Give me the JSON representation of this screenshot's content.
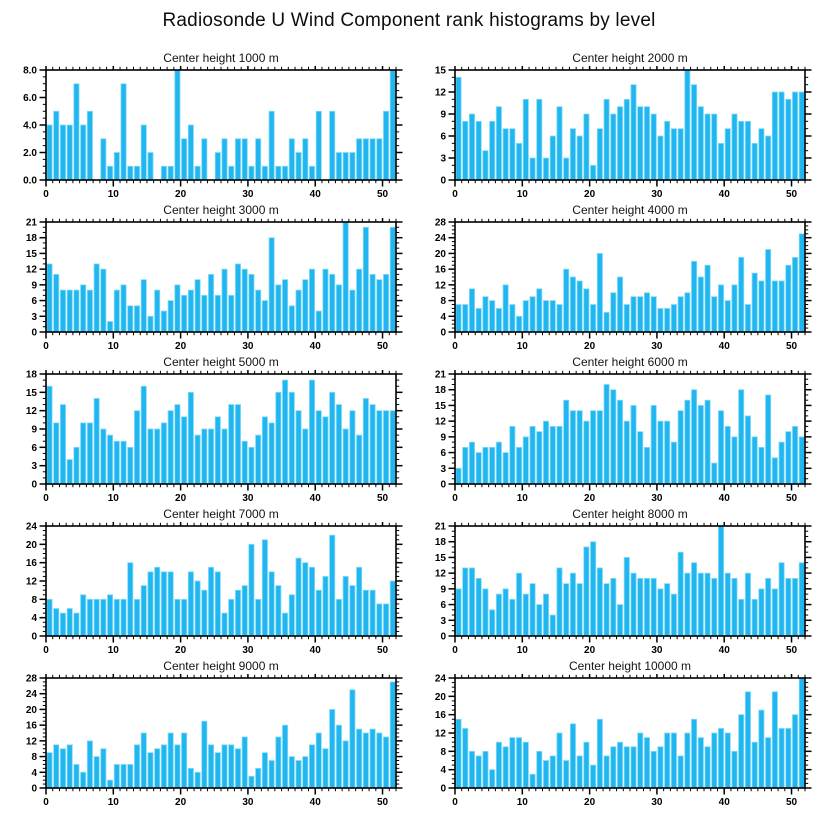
{
  "page_title": "Radiosonde U Wind Component rank histograms by level",
  "colors": {
    "bar_fill": "#21B6F0",
    "bar_edge": "#87DCF8",
    "axis": "#000000",
    "background": "#ffffff"
  },
  "layout": {
    "grid": "off",
    "legend": "none",
    "rows": 5,
    "cols": 2,
    "bin_count": 52
  },
  "chart_data": [
    {
      "type": "bar",
      "title": "Center height 1000 m",
      "xlabel": "",
      "ylabel": "",
      "xlim": [
        0,
        52
      ],
      "x_ticks": [
        0,
        10,
        20,
        30,
        40,
        50
      ],
      "x_minor_step": 1,
      "ylim": [
        0,
        8
      ],
      "y_major_step": 2,
      "y_minor_step": 0.5,
      "y_tick_labels": [
        "0.0",
        "2.0",
        "4.0",
        "6.0",
        "8.0"
      ],
      "values": [
        4,
        5,
        4,
        4,
        7,
        4,
        5,
        0,
        3,
        1,
        2,
        7,
        1,
        1,
        4,
        2,
        0,
        1,
        1,
        8,
        3,
        4,
        1,
        3,
        0,
        2,
        3,
        1,
        3,
        3,
        1,
        3,
        1,
        5,
        1,
        1,
        3,
        2,
        3,
        1,
        5,
        0,
        5,
        2,
        2,
        2,
        3,
        3,
        3,
        3,
        5,
        8
      ]
    },
    {
      "type": "bar",
      "title": "Center height 2000 m",
      "xlabel": "",
      "ylabel": "",
      "xlim": [
        0,
        52
      ],
      "x_ticks": [
        0,
        10,
        20,
        30,
        40,
        50
      ],
      "x_minor_step": 1,
      "ylim": [
        0,
        15
      ],
      "y_major_step": 3,
      "y_minor_step": 1,
      "y_tick_labels": [
        "0",
        "3",
        "6",
        "9",
        "12",
        "15"
      ],
      "values": [
        14,
        8,
        9,
        8,
        4,
        8,
        10,
        7,
        7,
        5,
        11,
        3,
        11,
        3,
        6,
        10,
        3,
        7,
        6,
        9,
        2,
        7,
        11,
        9,
        10,
        11,
        13,
        10,
        10,
        9,
        6,
        8,
        7,
        7,
        15,
        13,
        10,
        9,
        9,
        5,
        7,
        9,
        8,
        8,
        5,
        7,
        6,
        12,
        12,
        11,
        12,
        12
      ]
    },
    {
      "type": "bar",
      "title": "Center height 3000 m",
      "xlabel": "",
      "ylabel": "",
      "xlim": [
        0,
        52
      ],
      "x_ticks": [
        0,
        10,
        20,
        30,
        40,
        50
      ],
      "x_minor_step": 1,
      "ylim": [
        0,
        21
      ],
      "y_major_step": 3,
      "y_minor_step": 1,
      "y_tick_labels": [
        "0",
        "3",
        "6",
        "9",
        "12",
        "15",
        "18",
        "21"
      ],
      "values": [
        13,
        11,
        8,
        8,
        8,
        9,
        8,
        13,
        12,
        2,
        8,
        9,
        5,
        5,
        10,
        3,
        8,
        4,
        6,
        9,
        7,
        8,
        10,
        7,
        11,
        7,
        12,
        7,
        13,
        12,
        11,
        8,
        6,
        18,
        9,
        10,
        5,
        8,
        10,
        12,
        4,
        12,
        11,
        9,
        21,
        8,
        12,
        20,
        11,
        10,
        11,
        20
      ]
    },
    {
      "type": "bar",
      "title": "Center height 4000 m",
      "xlabel": "",
      "ylabel": "",
      "xlim": [
        0,
        52
      ],
      "x_ticks": [
        0,
        10,
        20,
        30,
        40,
        50
      ],
      "x_minor_step": 1,
      "ylim": [
        0,
        28
      ],
      "y_major_step": 4,
      "y_minor_step": 1,
      "y_tick_labels": [
        "0",
        "4",
        "8",
        "12",
        "16",
        "20",
        "24",
        "28"
      ],
      "values": [
        7,
        7,
        11,
        6,
        9,
        8,
        6,
        12,
        7,
        4,
        8,
        9,
        11,
        8,
        8,
        7,
        16,
        14,
        13,
        11,
        7,
        20,
        5,
        10,
        14,
        7,
        9,
        9,
        10,
        9,
        6,
        6,
        7,
        9,
        10,
        18,
        14,
        17,
        9,
        12,
        8,
        12,
        19,
        7,
        15,
        13,
        21,
        13,
        13,
        17,
        19,
        25
      ]
    },
    {
      "type": "bar",
      "title": "Center height 5000 m",
      "xlabel": "",
      "ylabel": "",
      "xlim": [
        0,
        52
      ],
      "x_ticks": [
        0,
        10,
        20,
        30,
        40,
        50
      ],
      "x_minor_step": 1,
      "ylim": [
        0,
        18
      ],
      "y_major_step": 3,
      "y_minor_step": 1,
      "y_tick_labels": [
        "0",
        "3",
        "6",
        "9",
        "12",
        "15",
        "18"
      ],
      "values": [
        16,
        10,
        13,
        4,
        6,
        10,
        10,
        14,
        9,
        8,
        7,
        7,
        6,
        12,
        16,
        9,
        9,
        10,
        12,
        13,
        11,
        15,
        8,
        9,
        9,
        11,
        9,
        13,
        13,
        7,
        6,
        8,
        11,
        10,
        15,
        17,
        15,
        12,
        9,
        17,
        12,
        11,
        15,
        13,
        9,
        12,
        8,
        14,
        13,
        12,
        12,
        12
      ]
    },
    {
      "type": "bar",
      "title": "Center height 6000 m",
      "xlabel": "",
      "ylabel": "",
      "xlim": [
        0,
        52
      ],
      "x_ticks": [
        0,
        10,
        20,
        30,
        40,
        50
      ],
      "x_minor_step": 1,
      "ylim": [
        0,
        21
      ],
      "y_major_step": 3,
      "y_minor_step": 1,
      "y_tick_labels": [
        "0",
        "3",
        "6",
        "9",
        "12",
        "15",
        "18",
        "21"
      ],
      "values": [
        3,
        7,
        8,
        6,
        7,
        7,
        8,
        6,
        11,
        7,
        9,
        11,
        10,
        12,
        11,
        11,
        16,
        14,
        14,
        12,
        14,
        14,
        19,
        18,
        16,
        12,
        15,
        10,
        7,
        15,
        12,
        12,
        8,
        14,
        16,
        18,
        15,
        16,
        4,
        14,
        11,
        9,
        18,
        13,
        9,
        7,
        17,
        5,
        8,
        10,
        11,
        9
      ]
    },
    {
      "type": "bar",
      "title": "Center height 7000 m",
      "xlabel": "",
      "ylabel": "",
      "xlim": [
        0,
        52
      ],
      "x_ticks": [
        0,
        10,
        20,
        30,
        40,
        50
      ],
      "x_minor_step": 1,
      "ylim": [
        0,
        24
      ],
      "y_major_step": 4,
      "y_minor_step": 1,
      "y_tick_labels": [
        "0",
        "4",
        "8",
        "12",
        "16",
        "20",
        "24"
      ],
      "values": [
        8,
        6,
        5,
        6,
        5,
        9,
        8,
        8,
        8,
        9,
        8,
        8,
        16,
        8,
        11,
        14,
        15,
        14,
        14,
        8,
        8,
        14,
        12,
        10,
        15,
        14,
        5,
        8,
        10,
        11,
        20,
        8,
        21,
        14,
        11,
        5,
        9,
        17,
        16,
        15,
        10,
        13,
        22,
        8,
        13,
        11,
        15,
        10,
        10,
        7,
        7,
        12
      ]
    },
    {
      "type": "bar",
      "title": "Center height 8000 m",
      "xlabel": "",
      "ylabel": "",
      "xlim": [
        0,
        52
      ],
      "x_ticks": [
        0,
        10,
        20,
        30,
        40,
        50
      ],
      "x_minor_step": 1,
      "ylim": [
        0,
        21
      ],
      "y_major_step": 3,
      "y_minor_step": 1,
      "y_tick_labels": [
        "0",
        "3",
        "6",
        "9",
        "12",
        "15",
        "18",
        "21"
      ],
      "values": [
        9,
        13,
        13,
        11,
        9,
        5,
        8,
        9,
        7,
        12,
        8,
        10,
        6,
        8,
        4,
        13,
        10,
        12,
        10,
        17,
        18,
        13,
        10,
        11,
        6,
        15,
        12,
        11,
        11,
        11,
        9,
        10,
        8,
        16,
        12,
        14,
        12,
        12,
        11,
        21,
        12,
        11,
        7,
        12,
        7,
        9,
        11,
        9,
        14,
        11,
        11,
        14
      ]
    },
    {
      "type": "bar",
      "title": "Center height 9000 m",
      "xlabel": "",
      "ylabel": "",
      "xlim": [
        0,
        52
      ],
      "x_ticks": [
        0,
        10,
        20,
        30,
        40,
        50
      ],
      "x_minor_step": 1,
      "ylim": [
        0,
        28
      ],
      "y_major_step": 4,
      "y_minor_step": 1,
      "y_tick_labels": [
        "0",
        "4",
        "8",
        "12",
        "16",
        "20",
        "24",
        "28"
      ],
      "values": [
        9,
        11,
        10,
        11,
        6,
        4,
        12,
        8,
        10,
        2,
        6,
        6,
        6,
        11,
        14,
        9,
        10,
        11,
        14,
        11,
        14,
        5,
        4,
        17,
        11,
        9,
        11,
        11,
        10,
        13,
        3,
        5,
        9,
        7,
        13,
        16,
        8,
        7,
        8,
        11,
        14,
        10,
        20,
        16,
        12,
        25,
        15,
        14,
        15,
        14,
        13,
        27
      ]
    },
    {
      "type": "bar",
      "title": "Center height 10000 m",
      "xlabel": "",
      "ylabel": "",
      "xlim": [
        0,
        52
      ],
      "x_ticks": [
        0,
        10,
        20,
        30,
        40,
        50
      ],
      "x_minor_step": 1,
      "ylim": [
        0,
        24
      ],
      "y_major_step": 4,
      "y_minor_step": 1,
      "y_tick_labels": [
        "0",
        "4",
        "8",
        "12",
        "16",
        "20",
        "24"
      ],
      "values": [
        15,
        13,
        8,
        7,
        8,
        4,
        10,
        9,
        11,
        11,
        10,
        3,
        8,
        6,
        7,
        12,
        6,
        14,
        7,
        10,
        5,
        15,
        7,
        9,
        10,
        9,
        9,
        12,
        11,
        8,
        9,
        12,
        12,
        7,
        12,
        15,
        11,
        9,
        12,
        13,
        12,
        8,
        16,
        21,
        10,
        17,
        11,
        21,
        13,
        13,
        16,
        24
      ]
    }
  ]
}
